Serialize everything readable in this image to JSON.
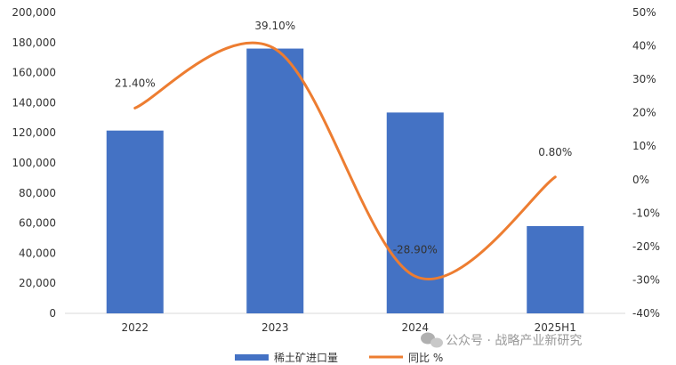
{
  "chart_data": {
    "type": "bar",
    "categories": [
      "2022",
      "2023",
      "2024",
      "2025H1"
    ],
    "series": [
      {
        "name": "稀土矿进口量",
        "type": "bar",
        "axis": "left",
        "color": "#4472C4",
        "values": [
          121500,
          176000,
          133500,
          58000
        ]
      },
      {
        "name": "同比 %",
        "type": "line",
        "axis": "right",
        "color": "#ED7D31",
        "values": [
          21.4,
          39.1,
          -28.9,
          0.8
        ],
        "labels": [
          "21.40%",
          "39.10%",
          "-28.90%",
          "0.80%"
        ]
      }
    ],
    "y_left": {
      "min": 0,
      "max": 200000,
      "step": 20000,
      "ticks": [
        "0",
        "20,000",
        "40,000",
        "60,000",
        "80,000",
        "100,000",
        "120,000",
        "140,000",
        "160,000",
        "180,000",
        "200,000"
      ]
    },
    "y_right": {
      "min": -40,
      "max": 50,
      "step": 10,
      "ticks": [
        "-40%",
        "-30%",
        "-20%",
        "-10%",
        "0%",
        "10%",
        "20%",
        "30%",
        "40%",
        "50%"
      ]
    },
    "grid": false,
    "legend": "bottom-center"
  },
  "watermark": "公众号 · 战略产业新研究",
  "watermark_icon": "wechat-icon"
}
